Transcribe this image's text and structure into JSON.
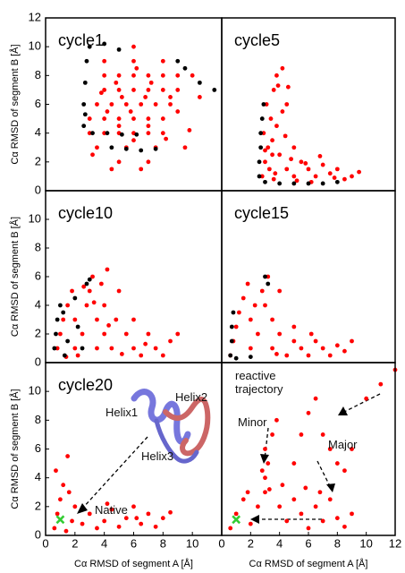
{
  "chart_data": [
    {
      "type": "scatter",
      "title": "cycle1",
      "ylabel": "Cα RMSD of segment B [Å]",
      "xlim": [
        0,
        12
      ],
      "ylim": [
        0,
        12
      ],
      "yticks": [
        0,
        2,
        4,
        6,
        8,
        10,
        12
      ],
      "series": [
        {
          "color": "#ff0000",
          "marker": "dot",
          "x": [
            3,
            4,
            5,
            6,
            7,
            8,
            3.5,
            4.5,
            5.5,
            6.5,
            7.5,
            8.5,
            4,
            5,
            6,
            7,
            8,
            9,
            3,
            4,
            5,
            6,
            7,
            8,
            4,
            5,
            6,
            7,
            8,
            9,
            3.5,
            5.5,
            7.5,
            9.5,
            4,
            6,
            8,
            10,
            5,
            7,
            6,
            4.5,
            6.5,
            8.5,
            3.2,
            10.5,
            5,
            7,
            9,
            6,
            4.2,
            5.8,
            6.8,
            5.2,
            7.2,
            4.8,
            6.2,
            3.8,
            8.2,
            9.8
          ],
          "values": [
            5,
            5,
            5,
            5,
            5,
            5,
            6,
            6,
            6,
            6,
            6,
            6,
            7,
            7,
            7,
            7,
            7,
            7,
            4,
            4,
            4,
            4,
            4,
            4,
            8,
            8,
            8,
            8,
            8,
            8,
            3,
            3,
            3,
            3,
            9,
            9,
            9,
            8,
            2,
            2,
            10,
            1.5,
            1.5,
            6.5,
            2.5,
            6.5,
            4.5,
            4.5,
            5.5,
            3.5,
            5.5,
            5.5,
            6.5,
            6.5,
            7.5,
            7.5,
            8.5,
            6.8,
            3.6,
            4.2
          ]
        },
        {
          "color": "#000000",
          "marker": "dot",
          "x": [
            2.6,
            2.6,
            2.7,
            2.8,
            3,
            4,
            5,
            3.2,
            4.2,
            5.2,
            6.2,
            4.5,
            5.5,
            6.5,
            7.5,
            9.5,
            10.5,
            11.5,
            9,
            2.7
          ],
          "values": [
            4.5,
            6,
            7.5,
            9,
            10,
            10.2,
            9.8,
            4,
            4,
            3.9,
            3.9,
            3,
            2.9,
            2.8,
            2.9,
            8.5,
            7.5,
            7,
            9,
            5.3
          ]
        }
      ]
    },
    {
      "type": "scatter",
      "title": "cycle5",
      "xlim": [
        0,
        12
      ],
      "ylim": [
        0,
        12
      ],
      "series": [
        {
          "color": "#ff0000",
          "marker": "dot",
          "x": [
            2.8,
            3,
            3.2,
            2.9,
            3.4,
            3.1,
            3.6,
            3.8,
            4.2,
            4.5,
            3.5,
            3.8,
            4,
            4.5,
            5,
            5.5,
            6,
            6.5,
            7,
            7.5,
            8,
            8.5,
            9,
            5.2,
            6.2,
            4.8,
            3.3,
            3.7,
            4.2,
            3.9,
            4.4,
            5.8,
            6.8,
            7.8,
            3.5,
            3,
            4.6,
            5,
            9.5,
            3.6
          ],
          "values": [
            1,
            2,
            3,
            4,
            5,
            6,
            7,
            8,
            8.5,
            6,
            3.5,
            4.5,
            2.5,
            1.5,
            1,
            2,
            1.5,
            1,
            1.8,
            1.2,
            1.5,
            0.8,
            1,
            0.7,
            0.6,
            2.2,
            1.5,
            1.2,
            5.5,
            7.3,
            3.8,
            1.9,
            2.4,
            0.9,
            2.5,
            2.8,
            7.2,
            3,
            1.3,
            0.8
          ]
        },
        {
          "color": "#000000",
          "marker": "dot",
          "x": [
            2.6,
            2.6,
            2.7,
            2.7,
            2.8,
            2.9,
            3,
            4,
            5,
            6,
            7,
            8
          ],
          "values": [
            1,
            2,
            3,
            4,
            5,
            6,
            0.6,
            0.5,
            0.5,
            0.5,
            0.5,
            0.6
          ]
        }
      ]
    },
    {
      "type": "scatter",
      "title": "cycle10",
      "ylabel": "Cα RMSD of segment B [Å]",
      "xlim": [
        0,
        12
      ],
      "ylim": [
        0,
        12
      ],
      "yticks": [
        0,
        2,
        4,
        6,
        8,
        10
      ],
      "series": [
        {
          "color": "#ff0000",
          "marker": "dot",
          "x": [
            0.8,
            1,
            1.2,
            1.5,
            2,
            2,
            2.5,
            2.8,
            3,
            3.2,
            3.5,
            3.5,
            4,
            4,
            4.2,
            4.5,
            4.8,
            5,
            5.5,
            6,
            6,
            6.5,
            7,
            7.5,
            8,
            8.5,
            9,
            1.8,
            2.2,
            3.8,
            5.2,
            4.3,
            2.6,
            1.4,
            6.8,
            3.3
          ],
          "values": [
            1,
            2,
            3,
            4,
            1,
            3,
            2,
            4,
            5,
            6,
            1,
            3,
            2,
            4,
            6.5,
            1,
            3,
            5,
            2,
            1,
            3,
            0.5,
            2,
            1,
            0.5,
            1.5,
            2,
            5,
            0.5,
            5.5,
            0.6,
            2.6,
            5.3,
            0.4,
            1.3,
            4.2
          ]
        },
        {
          "color": "#000000",
          "marker": "dot",
          "x": [
            0.6,
            0.7,
            0.8,
            1,
            1.2,
            1.5,
            2,
            2.2,
            2.5,
            2.8,
            1.3,
            3
          ],
          "values": [
            1,
            2,
            3,
            4,
            3.5,
            1.5,
            4.5,
            2.5,
            1,
            5.5,
            0.5,
            5.8
          ]
        }
      ]
    },
    {
      "type": "scatter",
      "title": "cycle15",
      "xlim": [
        0,
        12
      ],
      "ylim": [
        0,
        12
      ],
      "series": [
        {
          "color": "#ff0000",
          "marker": "dot",
          "x": [
            0.6,
            0.8,
            1,
            1.2,
            1.5,
            2,
            2,
            2.5,
            2.8,
            3,
            3.2,
            3.5,
            3.5,
            4,
            4,
            4.5,
            5,
            5.5,
            6,
            6.5,
            7,
            7.5,
            8,
            8.5,
            9,
            1.8,
            2.3,
            5,
            6.2,
            3.8
          ],
          "values": [
            0.5,
            1.5,
            2.5,
            3.5,
            4.5,
            1,
            3,
            2,
            5,
            4,
            6,
            1,
            3,
            2,
            5,
            0.5,
            1.5,
            1,
            0.5,
            1.5,
            1,
            0.5,
            1.2,
            0.8,
            1.5,
            5.5,
            4,
            2.5,
            2,
            0.6
          ]
        },
        {
          "color": "#000000",
          "marker": "dot",
          "x": [
            0.6,
            0.7,
            0.7,
            0.8,
            1,
            3,
            3.2,
            2
          ],
          "values": [
            0.5,
            1.5,
            2.5,
            3.5,
            0.3,
            6,
            5.5,
            0.4
          ]
        }
      ]
    },
    {
      "type": "scatter",
      "title": "cycle20",
      "ylabel": "Cα RMSD of segment B [Å]",
      "xlabel": "Cα RMSD of segment A [Å]",
      "xlim": [
        0,
        12
      ],
      "ylim": [
        0,
        12
      ],
      "yticks": [
        0,
        2,
        4,
        6,
        8,
        10
      ],
      "xticks": [
        0,
        2,
        4,
        6,
        8,
        10
      ],
      "annotations": [
        "Helix2",
        "Helix1",
        "Helix3",
        "Native"
      ],
      "series": [
        {
          "color": "#ff0000",
          "marker": "dot",
          "x": [
            0.6,
            0.8,
            1,
            1.2,
            0.7,
            1.5,
            1.8,
            2,
            1.4,
            2.5,
            3,
            3.5,
            4,
            4.5,
            5,
            5.5,
            6,
            6.5,
            7,
            7.5,
            8,
            8.5,
            1.6,
            4.2,
            6.2
          ],
          "values": [
            0.5,
            1.5,
            2.5,
            3.5,
            4.5,
            5.5,
            1,
            2,
            0.3,
            0.8,
            1.5,
            0.5,
            1,
            1.8,
            0.6,
            1.2,
            2,
            0.8,
            1.5,
            0.6,
            1.2,
            1.6,
            3,
            2.2,
            1.2
          ]
        },
        {
          "color": "#33cc33",
          "marker": "x",
          "x": [
            1
          ],
          "values": [
            1.1
          ]
        }
      ]
    },
    {
      "type": "scatter",
      "xlabel": "Cα RMSD of segment A [Å]",
      "xlim": [
        0,
        12
      ],
      "ylim": [
        0,
        12
      ],
      "xticks": [
        0,
        2,
        4,
        6,
        8,
        10,
        12
      ],
      "annotations": [
        "reactive trajectory",
        "Minor",
        "Major"
      ],
      "series": [
        {
          "color": "#ff0000",
          "marker": "dot",
          "x": [
            0.6,
            1,
            1.5,
            2,
            2.5,
            3,
            3,
            3.2,
            3,
            3.5,
            3.8,
            4,
            4.5,
            5,
            5.5,
            6,
            6.5,
            7,
            7.5,
            8,
            8.5,
            9,
            4.2,
            5,
            5.5,
            6,
            6.5,
            7,
            7.5,
            8,
            8.5,
            9,
            11,
            12,
            10,
            2.8,
            3.3,
            5.8,
            6.8,
            1.8
          ],
          "values": [
            0.5,
            1.5,
            2.5,
            0.8,
            2,
            3,
            4,
            5,
            6,
            7,
            8,
            2,
            1,
            2.5,
            1.5,
            0.5,
            2,
            1,
            2.5,
            1.2,
            0.6,
            1.5,
            3.5,
            5,
            7,
            8.5,
            9.5,
            7,
            6,
            5,
            4.5,
            6,
            10.5,
            11.5,
            9.5,
            4.5,
            3.2,
            3.3,
            3,
            3
          ]
        },
        {
          "color": "#33cc33",
          "marker": "x",
          "x": [
            1
          ],
          "values": [
            1.1
          ]
        }
      ]
    }
  ]
}
